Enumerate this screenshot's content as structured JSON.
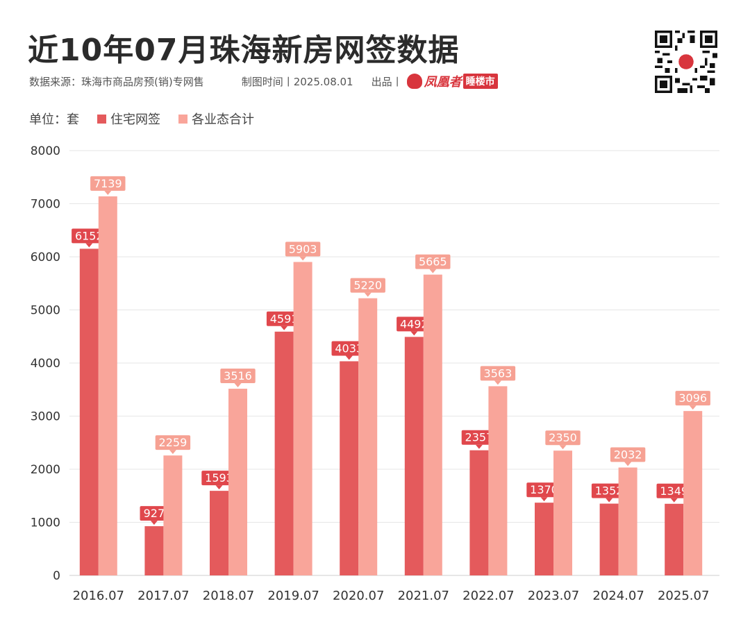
{
  "header": {
    "title": "近10年07月珠海新房网签数据",
    "source": "数据来源：珠海市商品房预(销)专网售",
    "date": "制图时间丨2025.08.01",
    "publisher": "出品丨",
    "brand": "凤凰者",
    "brand_tag": "睡楼市"
  },
  "legend": {
    "unit": "单位：套"
  },
  "colors": {
    "residential": "#e45a5c",
    "total": "#f9a59a",
    "grid": "#e6e6e6",
    "axis_text": "#333333"
  },
  "chart_data": {
    "type": "bar",
    "categories": [
      "2016.07",
      "2017.07",
      "2018.07",
      "2019.07",
      "2020.07",
      "2021.07",
      "2022.07",
      "2023.07",
      "2024.07",
      "2025.07"
    ],
    "series": [
      {
        "name": "住宅网签",
        "values": [
          6152,
          927,
          1593,
          4591,
          4033,
          4492,
          2357,
          1370,
          1352,
          1349
        ]
      },
      {
        "name": "各业态合计",
        "values": [
          7139,
          2259,
          3516,
          5903,
          5220,
          5665,
          3563,
          2350,
          2032,
          3096
        ]
      }
    ],
    "ylim": [
      0,
      8000
    ],
    "yticks": [
      0,
      1000,
      2000,
      3000,
      4000,
      5000,
      6000,
      7000,
      8000
    ],
    "grid": true,
    "legend_position": "top-left"
  }
}
